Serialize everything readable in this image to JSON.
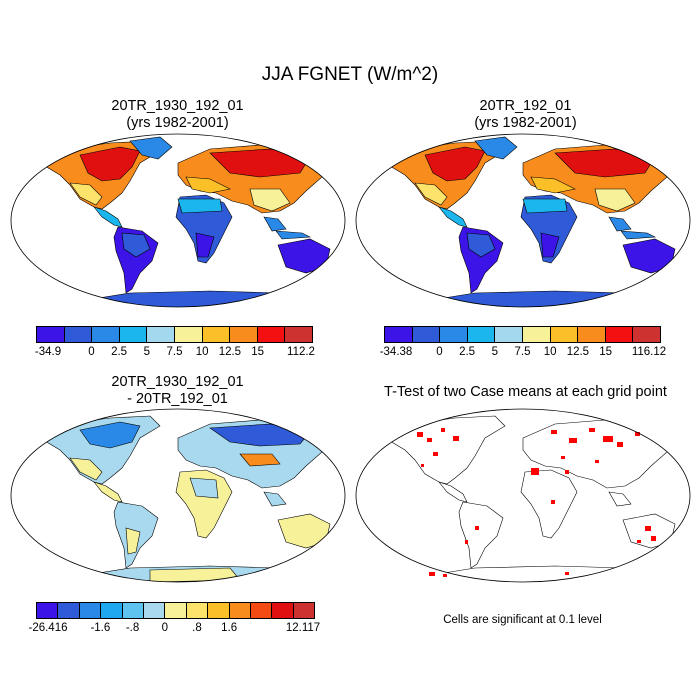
{
  "title": "JJA FGNET (W/m^2)",
  "panels": [
    {
      "title_line1": "20TR_1930_192_01",
      "title_line2": "(yrs 1982-2001)"
    },
    {
      "title_line1": "20TR_192_01",
      "title_line2": "(yrs 1982-2001)"
    },
    {
      "title_line1": "20TR_1930_192_01",
      "title_line2": "- 20TR_192_01"
    },
    {
      "title_line1": "T-Test of two Case means at each grid point",
      "title_line2": ""
    }
  ],
  "colorbars": [
    {
      "colors": [
        "#3d14e8",
        "#2f5ad8",
        "#2a88e6",
        "#1bb6ee",
        "#a3d8ee",
        "#f7f29a",
        "#fbbf28",
        "#f88c1c",
        "#f40f10",
        "#cd3230"
      ],
      "labels": [
        "-34.9",
        "0",
        "2.5",
        "5",
        "7.5",
        "10",
        "12.5",
        "15",
        "112.2"
      ]
    },
    {
      "colors": [
        "#3d14e8",
        "#2f5ad8",
        "#2a88e6",
        "#1bb6ee",
        "#a3d8ee",
        "#f7f29a",
        "#fbbf28",
        "#f88c1c",
        "#f40f10",
        "#cd3230"
      ],
      "labels": [
        "-34.38",
        "0",
        "2.5",
        "5",
        "7.5",
        "10",
        "12.5",
        "15",
        "116.12"
      ]
    },
    {
      "colors": [
        "#3d14e8",
        "#2f5ad8",
        "#2a88e6",
        "#1fa8ee",
        "#5ec3ef",
        "#a8d9ee",
        "#f7f29a",
        "#fce36c",
        "#fbbf28",
        "#f88c1c",
        "#f44b14",
        "#e01010",
        "#cd3230"
      ],
      "labels": [
        "-26.416",
        "-1.6",
        "-.8",
        "0",
        ".8",
        "1.6",
        "12.117"
      ]
    }
  ],
  "significance_note": "Cells are significant at 0.1 level",
  "colors": {
    "significant": "#ff0000",
    "ocean": "#ffffff",
    "coast": "#000000"
  }
}
